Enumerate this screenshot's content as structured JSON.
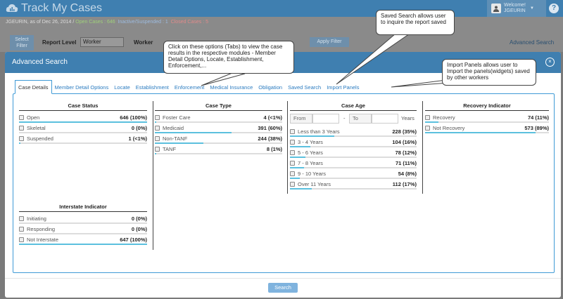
{
  "app": {
    "title": "Track My Cases",
    "user_greeting": "Welcome!",
    "user_name": "JGEURIN",
    "help": "?"
  },
  "summary": {
    "prefix": "JGEURIN, as of Dec 26, 2014",
    "separator": "/",
    "open": "Open Cases : 646",
    "inactive": "Inactive/Suspended : 1",
    "closed": "Closed Cases : 5"
  },
  "filterbar": {
    "select_filter": "Select Filter",
    "report_level_label": "Report Level",
    "report_level_value": "Worker",
    "worker_label": "Worker",
    "apply_label": "Apply Filter",
    "advanced_link": "Advanced Search"
  },
  "modal": {
    "title": "Advanced Search",
    "close": "×",
    "search_label": "Search",
    "tabs": [
      {
        "label": "Case Details",
        "active": true
      },
      {
        "label": "Member Detail Options"
      },
      {
        "label": "Locate"
      },
      {
        "label": "Establishment"
      },
      {
        "label": "Enforcement"
      },
      {
        "label": "Medical Insurance"
      },
      {
        "label": "Obligation"
      },
      {
        "label": "Saved Search"
      },
      {
        "label": "Import Panels"
      }
    ]
  },
  "panels": {
    "case_status": {
      "title": "Case Status",
      "items": [
        {
          "label": "Open",
          "value": "646 (100%)",
          "fill": 1.0
        },
        {
          "label": "Skeletal",
          "value": "0 (0%)",
          "fill": 0
        },
        {
          "label": "Suspended",
          "value": "1 (<1%)",
          "fill": 0.01
        }
      ]
    },
    "case_type": {
      "title": "Case Type",
      "items": [
        {
          "label": "Foster Care",
          "value": "4 (<1%)",
          "fill": 0.01
        },
        {
          "label": "Medicaid",
          "value": "391 (60%)",
          "fill": 0.6
        },
        {
          "label": "Non-TANF",
          "value": "244 (38%)",
          "fill": 0.38
        },
        {
          "label": "TANF",
          "value": "8 (1%)",
          "fill": 0.01
        }
      ]
    },
    "case_age": {
      "title": "Case Age",
      "from_label": "From",
      "dash": "-",
      "to_label": "To",
      "unit": "Years",
      "items": [
        {
          "label": "Less than 3 Years",
          "value": "228 (35%)",
          "fill": 0.35
        },
        {
          "label": "3 - 4 Years",
          "value": "104 (16%)",
          "fill": 0.16
        },
        {
          "label": "5 - 6 Years",
          "value": "78 (12%)",
          "fill": 0.12
        },
        {
          "label": "7 - 8 Years",
          "value": "71 (11%)",
          "fill": 0.11
        },
        {
          "label": "9 - 10 Years",
          "value": "54 (8%)",
          "fill": 0.08
        },
        {
          "label": "Over 11 Years",
          "value": "112 (17%)",
          "fill": 0.17
        }
      ]
    },
    "recovery": {
      "title": "Recovery Indicator",
      "items": [
        {
          "label": "Recovery",
          "value": "74 (11%)",
          "fill": 0.11
        },
        {
          "label": "Not Recovery",
          "value": "573 (89%)",
          "fill": 0.89
        }
      ]
    },
    "interstate": {
      "title": "Interstate Indicator",
      "items": [
        {
          "label": "Initiating",
          "value": "0 (0%)",
          "fill": 0
        },
        {
          "label": "Responding",
          "value": "0 (0%)",
          "fill": 0
        },
        {
          "label": "Not Interstate",
          "value": "647 (100%)",
          "fill": 1.0
        }
      ]
    }
  },
  "callouts": {
    "tabs_note": "Click on these options (Tabs) to view the case results in the respective modules - Member Detail Options, Locate, Establishment, Enforcement,...",
    "saved_note": "Saved Search allows user to inquire the report saved",
    "import_note": "Import Panels allows user to Import the panels(widgets) saved by other workers"
  },
  "colors": {
    "header": "#3f7fb0",
    "accent": "#3f9ad6",
    "bar_fill": "#5bc0de"
  }
}
